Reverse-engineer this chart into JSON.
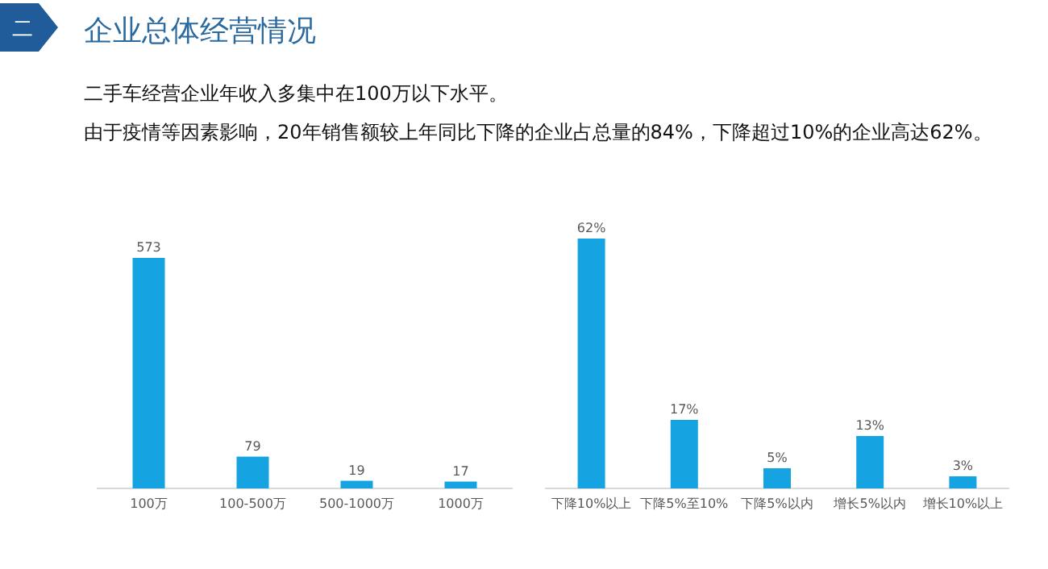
{
  "chart_data": [
    {
      "type": "bar",
      "title": "企业总体经营情况",
      "annotations": [
        "二",
        "二手车经营企业年收入多集中在100万以下水平。",
        "由于疫情等因素影响，20年销售额较上年同比下降的企业占总量的84%，下降超过10%的企业高达62%。"
      ],
      "categories": [
        "100万",
        "100-500万",
        "500-1000万",
        "1000万"
      ],
      "values": [
        573,
        79,
        19,
        17
      ],
      "color": "#16a3e2",
      "data_labels": true
    },
    {
      "type": "bar",
      "categories": [
        "下降10%以上",
        "下降5%至10%",
        "下降5%以内",
        "增长5%以内",
        "增长10%以上"
      ],
      "values": [
        62,
        17,
        5,
        13,
        3
      ],
      "value_labels": [
        "62%",
        "17%",
        "5%",
        "13%",
        "3%"
      ],
      "color": "#16a3e2"
    }
  ]
}
